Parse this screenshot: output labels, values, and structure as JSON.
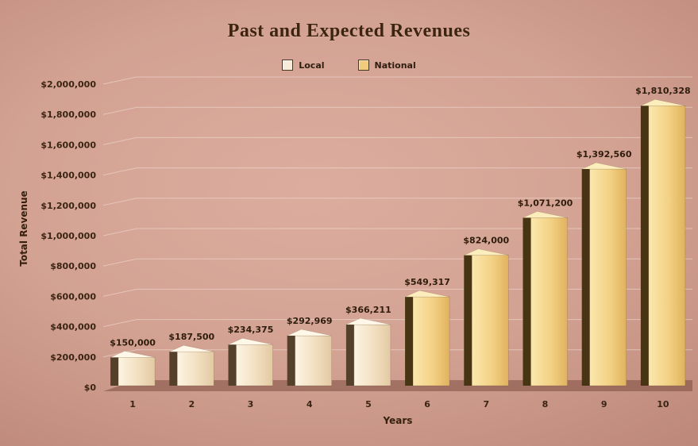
{
  "page": {
    "title": "Past and Expected Revenues"
  },
  "legend": {
    "items": [
      {
        "label": "Local",
        "color": "#f7ecd9"
      },
      {
        "label": "National",
        "color": "#f2cc7a"
      }
    ]
  },
  "chart_data": {
    "type": "bar",
    "title": "Past and Expected Revenues",
    "xlabel": "Years",
    "ylabel": "Total Revenue",
    "ylim": [
      0,
      2000000
    ],
    "ytick_step": 200000,
    "ytick_labels": [
      "$0",
      "$200,000",
      "$400,000",
      "$600,000",
      "$800,000",
      "$1,000,000",
      "$1,200,000",
      "$1,400,000",
      "$1,600,000",
      "$1,800,000",
      "$2,000,000"
    ],
    "categories": [
      "1",
      "2",
      "3",
      "4",
      "5",
      "6",
      "7",
      "8",
      "9",
      "10"
    ],
    "series": [
      {
        "name": "Local",
        "color": "#f7ecd9",
        "values": [
          150000,
          187500,
          234375,
          292969,
          366211,
          null,
          null,
          null,
          null,
          null
        ]
      },
      {
        "name": "National",
        "color": "#f2cc7a",
        "values": [
          null,
          null,
          null,
          null,
          null,
          549317,
          824000,
          1071200,
          1392560,
          1810328
        ]
      }
    ],
    "bars": [
      {
        "category": "1",
        "series": "Local",
        "value": 150000,
        "label": "$150,000"
      },
      {
        "category": "2",
        "series": "Local",
        "value": 187500,
        "label": "$187,500"
      },
      {
        "category": "3",
        "series": "Local",
        "value": 234375,
        "label": "$234,375"
      },
      {
        "category": "4",
        "series": "Local",
        "value": 292969,
        "label": "$292,969"
      },
      {
        "category": "5",
        "series": "Local",
        "value": 366211,
        "label": "$366,211"
      },
      {
        "category": "6",
        "series": "National",
        "value": 549317,
        "label": "$549,317"
      },
      {
        "category": "7",
        "series": "National",
        "value": 824000,
        "label": "$824,000"
      },
      {
        "category": "8",
        "series": "National",
        "value": 1071200,
        "label": "$1,071,200"
      },
      {
        "category": "9",
        "series": "National",
        "value": 1392560,
        "label": "$1,392,560"
      },
      {
        "category": "10",
        "series": "National",
        "value": 1810328,
        "label": "$1,810,328"
      }
    ],
    "legend_position": "top",
    "grid": true
  }
}
